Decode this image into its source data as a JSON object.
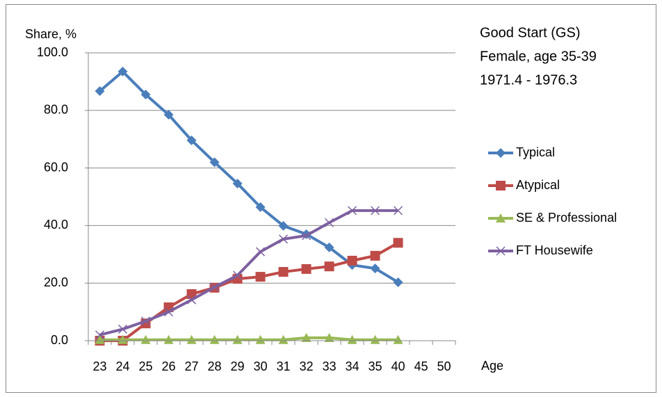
{
  "chart_data": {
    "type": "line",
    "y_label": "Share, %",
    "x_label": "Age",
    "annotations": [
      "Good Start (GS)",
      "Female, age 35-39",
      "1971.4 - 1976.3"
    ],
    "categories": [
      "23",
      "24",
      "25",
      "26",
      "27",
      "28",
      "29",
      "30",
      "31",
      "32",
      "33",
      "34",
      "35",
      "40",
      "45",
      "50"
    ],
    "series": [
      {
        "name": "Typical",
        "color": "#4a7ebb",
        "marker": "diamond",
        "values": [
          86.7,
          93.5,
          85.5,
          78.5,
          69.6,
          62,
          54.6,
          46.4,
          39.9,
          37,
          32.4,
          26.3,
          25.1,
          20.3,
          null,
          null
        ]
      },
      {
        "name": "Atypical",
        "color": "#be4b48",
        "marker": "square",
        "values": [
          0,
          0,
          6,
          11.6,
          16.2,
          18.4,
          21.5,
          22.2,
          23.9,
          24.9,
          25.8,
          27.8,
          29.5,
          34,
          null,
          null
        ]
      },
      {
        "name": "SE & Professional",
        "color": "#98b954",
        "marker": "triangle",
        "values": [
          0.3,
          0.3,
          0.3,
          0.3,
          0.3,
          0.3,
          0.3,
          0.3,
          0.3,
          1,
          1,
          0.3,
          0.3,
          0.3,
          null,
          null
        ]
      },
      {
        "name": "FT Housewife",
        "color": "#7d60a0",
        "marker": "x",
        "values": [
          2,
          4,
          6.8,
          10,
          14.2,
          18.6,
          22.7,
          30.9,
          35.3,
          36.5,
          41,
          45.2,
          45.2,
          45.2,
          null,
          null
        ]
      }
    ],
    "ylim": [
      0,
      100
    ],
    "yticks": [
      {
        "value": 0,
        "label": "0.0"
      },
      {
        "value": 20,
        "label": "20.0"
      },
      {
        "value": 40,
        "label": "40.0"
      },
      {
        "value": 60,
        "label": "60.0"
      },
      {
        "value": 80,
        "label": "80.0"
      },
      {
        "value": 100,
        "label": "100.0"
      }
    ],
    "grid": true,
    "legend": "right"
  }
}
